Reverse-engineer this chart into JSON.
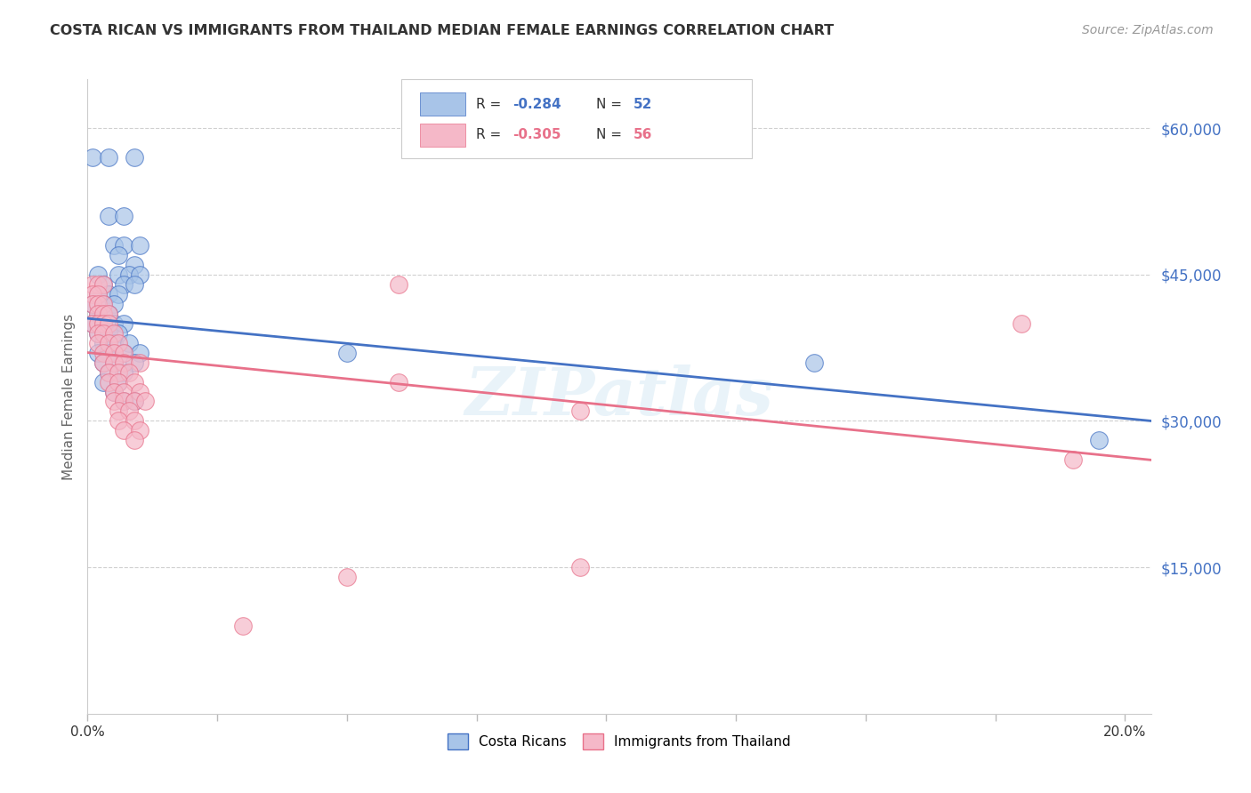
{
  "title": "COSTA RICAN VS IMMIGRANTS FROM THAILAND MEDIAN FEMALE EARNINGS CORRELATION CHART",
  "source": "Source: ZipAtlas.com",
  "ylabel": "Median Female Earnings",
  "ytick_labels": [
    "$60,000",
    "$45,000",
    "$30,000",
    "$15,000"
  ],
  "ytick_values": [
    60000,
    45000,
    30000,
    15000
  ],
  "ymin": 0,
  "ymax": 65000,
  "xmin": 0.0,
  "xmax": 0.205,
  "legend_label_blue": "Costa Ricans",
  "legend_label_pink": "Immigrants from Thailand",
  "watermark": "ZIPatlas",
  "blue_color": "#a8c4e8",
  "pink_color": "#f5b8c8",
  "blue_line_color": "#4472c4",
  "pink_line_color": "#e8718a",
  "blue_scatter": [
    [
      0.001,
      57000
    ],
    [
      0.004,
      57000
    ],
    [
      0.009,
      57000
    ],
    [
      0.004,
      51000
    ],
    [
      0.007,
      51000
    ],
    [
      0.005,
      48000
    ],
    [
      0.007,
      48000
    ],
    [
      0.01,
      48000
    ],
    [
      0.006,
      47000
    ],
    [
      0.009,
      46000
    ],
    [
      0.002,
      45000
    ],
    [
      0.006,
      45000
    ],
    [
      0.008,
      45000
    ],
    [
      0.01,
      45000
    ],
    [
      0.003,
      44000
    ],
    [
      0.007,
      44000
    ],
    [
      0.009,
      44000
    ],
    [
      0.002,
      43000
    ],
    [
      0.004,
      43000
    ],
    [
      0.006,
      43000
    ],
    [
      0.001,
      42000
    ],
    [
      0.003,
      42000
    ],
    [
      0.005,
      42000
    ],
    [
      0.002,
      41000
    ],
    [
      0.004,
      41000
    ],
    [
      0.001,
      40000
    ],
    [
      0.003,
      40000
    ],
    [
      0.005,
      40000
    ],
    [
      0.007,
      40000
    ],
    [
      0.002,
      39000
    ],
    [
      0.004,
      39000
    ],
    [
      0.006,
      39000
    ],
    [
      0.003,
      38000
    ],
    [
      0.005,
      38000
    ],
    [
      0.008,
      38000
    ],
    [
      0.002,
      37000
    ],
    [
      0.004,
      37000
    ],
    [
      0.007,
      37000
    ],
    [
      0.01,
      37000
    ],
    [
      0.003,
      36000
    ],
    [
      0.005,
      36000
    ],
    [
      0.009,
      36000
    ],
    [
      0.004,
      35000
    ],
    [
      0.007,
      35000
    ],
    [
      0.003,
      34000
    ],
    [
      0.006,
      34000
    ],
    [
      0.005,
      33000
    ],
    [
      0.007,
      32000
    ],
    [
      0.009,
      32000
    ],
    [
      0.05,
      37000
    ],
    [
      0.14,
      36000
    ],
    [
      0.195,
      28000
    ]
  ],
  "pink_scatter": [
    [
      0.001,
      44000
    ],
    [
      0.002,
      44000
    ],
    [
      0.003,
      44000
    ],
    [
      0.001,
      43000
    ],
    [
      0.002,
      43000
    ],
    [
      0.001,
      42000
    ],
    [
      0.002,
      42000
    ],
    [
      0.003,
      42000
    ],
    [
      0.002,
      41000
    ],
    [
      0.003,
      41000
    ],
    [
      0.004,
      41000
    ],
    [
      0.001,
      40000
    ],
    [
      0.002,
      40000
    ],
    [
      0.003,
      40000
    ],
    [
      0.004,
      40000
    ],
    [
      0.002,
      39000
    ],
    [
      0.003,
      39000
    ],
    [
      0.005,
      39000
    ],
    [
      0.002,
      38000
    ],
    [
      0.004,
      38000
    ],
    [
      0.006,
      38000
    ],
    [
      0.003,
      37000
    ],
    [
      0.005,
      37000
    ],
    [
      0.007,
      37000
    ],
    [
      0.003,
      36000
    ],
    [
      0.005,
      36000
    ],
    [
      0.007,
      36000
    ],
    [
      0.01,
      36000
    ],
    [
      0.004,
      35000
    ],
    [
      0.006,
      35000
    ],
    [
      0.008,
      35000
    ],
    [
      0.004,
      34000
    ],
    [
      0.006,
      34000
    ],
    [
      0.009,
      34000
    ],
    [
      0.005,
      33000
    ],
    [
      0.007,
      33000
    ],
    [
      0.01,
      33000
    ],
    [
      0.005,
      32000
    ],
    [
      0.007,
      32000
    ],
    [
      0.009,
      32000
    ],
    [
      0.011,
      32000
    ],
    [
      0.006,
      31000
    ],
    [
      0.008,
      31000
    ],
    [
      0.006,
      30000
    ],
    [
      0.009,
      30000
    ],
    [
      0.007,
      29000
    ],
    [
      0.01,
      29000
    ],
    [
      0.009,
      28000
    ],
    [
      0.06,
      44000
    ],
    [
      0.06,
      34000
    ],
    [
      0.095,
      31000
    ],
    [
      0.095,
      15000
    ],
    [
      0.05,
      14000
    ],
    [
      0.03,
      9000
    ],
    [
      0.18,
      40000
    ],
    [
      0.19,
      26000
    ]
  ],
  "background_color": "#ffffff",
  "grid_color": "#d0d0d0"
}
